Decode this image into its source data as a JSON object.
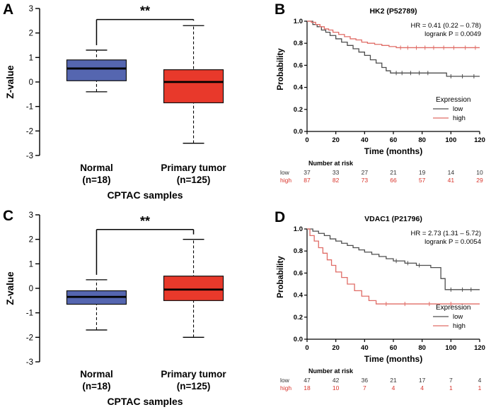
{
  "panel_labels": {
    "a": "A",
    "b": "B",
    "c": "C",
    "d": "D"
  },
  "colors": {
    "normal_box": "#5566B0",
    "tumor_box": "#E8392B",
    "km_low": "#4D4D4D",
    "km_high": "#E06C66",
    "risk_low_label": "#333333",
    "risk_high_label": "#D9342B"
  },
  "chart_data": [
    {
      "id": "A",
      "type": "box",
      "ylabel": "Z-value",
      "xlabel": "CPTAC samples",
      "ylim": [
        -3,
        3
      ],
      "yticks": [
        -3,
        -2,
        -1,
        0,
        1,
        2,
        3
      ],
      "significance": "**",
      "sig_level": 2.55,
      "groups": [
        {
          "label": "Normal",
          "sublabel": "(n=18)",
          "color": "#5566B0",
          "median": 0.55,
          "q1": 0.05,
          "q3": 0.9,
          "lo": -0.4,
          "hi": 1.3
        },
        {
          "label": "Primary tumor",
          "sublabel": "(n=125)",
          "color": "#E8392B",
          "median": 0.0,
          "q1": -0.85,
          "q3": 0.5,
          "lo": -2.5,
          "hi": 2.3
        }
      ]
    },
    {
      "id": "B",
      "type": "km",
      "title": "HK2 (P52789)",
      "annotation": [
        "HR = 0.41 (0.22 – 0.78)",
        "logrank P = 0.0049"
      ],
      "xlabel": "Time (months)",
      "ylabel": "Probability",
      "xlim": [
        0,
        120
      ],
      "xticks": [
        0,
        20,
        40,
        60,
        80,
        100,
        120
      ],
      "ylim": [
        0,
        1
      ],
      "yticks": [
        "0.0",
        "0.2",
        "0.4",
        "0.6",
        "0.8",
        "1.0"
      ],
      "legend_title": "Expression",
      "series": [
        {
          "name": "low",
          "color": "#4D4D4D",
          "steps": [
            [
              0,
              1.0
            ],
            [
              4,
              0.97
            ],
            [
              7,
              0.95
            ],
            [
              10,
              0.92
            ],
            [
              13,
              0.9
            ],
            [
              16,
              0.87
            ],
            [
              20,
              0.84
            ],
            [
              24,
              0.81
            ],
            [
              28,
              0.78
            ],
            [
              32,
              0.75
            ],
            [
              36,
              0.72
            ],
            [
              40,
              0.69
            ],
            [
              44,
              0.65
            ],
            [
              48,
              0.62
            ],
            [
              52,
              0.58
            ],
            [
              55,
              0.55
            ],
            [
              58,
              0.53
            ],
            [
              95,
              0.53
            ],
            [
              97,
              0.5
            ],
            [
              120,
              0.5
            ]
          ],
          "censor": [
            [
              62,
              0.53
            ],
            [
              66,
              0.53
            ],
            [
              72,
              0.53
            ],
            [
              78,
              0.53
            ],
            [
              84,
              0.53
            ],
            [
              100,
              0.5
            ],
            [
              108,
              0.5
            ],
            [
              116,
              0.5
            ]
          ]
        },
        {
          "name": "high",
          "color": "#E06C66",
          "steps": [
            [
              0,
              1.0
            ],
            [
              3,
              0.99
            ],
            [
              6,
              0.97
            ],
            [
              9,
              0.95
            ],
            [
              12,
              0.93
            ],
            [
              15,
              0.92
            ],
            [
              18,
              0.9
            ],
            [
              22,
              0.88
            ],
            [
              26,
              0.86
            ],
            [
              30,
              0.84
            ],
            [
              34,
              0.83
            ],
            [
              38,
              0.81
            ],
            [
              42,
              0.8
            ],
            [
              47,
              0.79
            ],
            [
              52,
              0.78
            ],
            [
              57,
              0.77
            ],
            [
              62,
              0.76
            ],
            [
              120,
              0.76
            ]
          ],
          "censor": [
            [
              65,
              0.76
            ],
            [
              70,
              0.76
            ],
            [
              76,
              0.76
            ],
            [
              82,
              0.76
            ],
            [
              88,
              0.76
            ],
            [
              95,
              0.76
            ],
            [
              102,
              0.76
            ],
            [
              110,
              0.76
            ],
            [
              117,
              0.76
            ]
          ]
        }
      ],
      "risk_table": {
        "title": "Number at risk",
        "times": [
          0,
          20,
          40,
          60,
          80,
          100,
          120
        ],
        "rows": [
          {
            "name": "low",
            "color": "#333333",
            "counts": [
              37,
              33,
              27,
              21,
              19,
              14,
              10
            ]
          },
          {
            "name": "high",
            "color": "#D9342B",
            "counts": [
              87,
              82,
              73,
              66,
              57,
              41,
              29
            ]
          }
        ]
      }
    },
    {
      "id": "C",
      "type": "box",
      "ylabel": "Z-value",
      "xlabel": "CPTAC samples",
      "ylim": [
        -3,
        3
      ],
      "yticks": [
        -3,
        -2,
        -1,
        0,
        1,
        2,
        3
      ],
      "significance": "**",
      "sig_level": 2.4,
      "groups": [
        {
          "label": "Normal",
          "sublabel": "(n=18)",
          "color": "#5566B0",
          "median": -0.35,
          "q1": -0.65,
          "q3": -0.1,
          "lo": -1.7,
          "hi": 0.35
        },
        {
          "label": "Primary tumor",
          "sublabel": "(n=125)",
          "color": "#E8392B",
          "median": -0.05,
          "q1": -0.5,
          "q3": 0.5,
          "lo": -2.0,
          "hi": 2.0
        }
      ]
    },
    {
      "id": "D",
      "type": "km",
      "title": "VDAC1 (P21796)",
      "annotation": [
        "HR = 2.73 (1.31 – 5.72)",
        "logrank P = 0.0054"
      ],
      "xlabel": "Time (months)",
      "ylabel": "Probability",
      "xlim": [
        0,
        120
      ],
      "xticks": [
        0,
        20,
        40,
        60,
        80,
        100,
        120
      ],
      "ylim": [
        0,
        1
      ],
      "yticks": [
        "0.0",
        "0.2",
        "0.4",
        "0.6",
        "0.8",
        "1.0"
      ],
      "legend_title": "Expression",
      "series": [
        {
          "name": "low",
          "color": "#4D4D4D",
          "steps": [
            [
              0,
              1.0
            ],
            [
              4,
              0.98
            ],
            [
              8,
              0.96
            ],
            [
              12,
              0.94
            ],
            [
              16,
              0.91
            ],
            [
              20,
              0.89
            ],
            [
              24,
              0.87
            ],
            [
              28,
              0.85
            ],
            [
              32,
              0.83
            ],
            [
              36,
              0.81
            ],
            [
              40,
              0.79
            ],
            [
              45,
              0.77
            ],
            [
              50,
              0.75
            ],
            [
              55,
              0.73
            ],
            [
              60,
              0.71
            ],
            [
              68,
              0.69
            ],
            [
              76,
              0.67
            ],
            [
              86,
              0.65
            ],
            [
              93,
              0.55
            ],
            [
              96,
              0.45
            ],
            [
              120,
              0.45
            ]
          ],
          "censor": [
            [
              62,
              0.71
            ],
            [
              70,
              0.69
            ],
            [
              78,
              0.67
            ],
            [
              100,
              0.45
            ],
            [
              108,
              0.45
            ],
            [
              114,
              0.45
            ]
          ]
        },
        {
          "name": "high",
          "color": "#E06C66",
          "steps": [
            [
              0,
              1.0
            ],
            [
              2,
              0.94
            ],
            [
              5,
              0.89
            ],
            [
              8,
              0.83
            ],
            [
              11,
              0.78
            ],
            [
              14,
              0.72
            ],
            [
              17,
              0.67
            ],
            [
              20,
              0.61
            ],
            [
              24,
              0.56
            ],
            [
              28,
              0.5
            ],
            [
              33,
              0.44
            ],
            [
              38,
              0.39
            ],
            [
              43,
              0.35
            ],
            [
              48,
              0.32
            ],
            [
              120,
              0.32
            ]
          ],
          "censor": [
            [
              55,
              0.32
            ],
            [
              68,
              0.32
            ],
            [
              85,
              0.32
            ],
            [
              100,
              0.32
            ]
          ]
        }
      ],
      "risk_table": {
        "title": "Number at risk",
        "times": [
          0,
          20,
          40,
          60,
          80,
          100,
          120
        ],
        "rows": [
          {
            "name": "low",
            "color": "#333333",
            "counts": [
              47,
              42,
              36,
              21,
              17,
              7,
              4
            ]
          },
          {
            "name": "high",
            "color": "#D9342B",
            "counts": [
              18,
              10,
              7,
              4,
              4,
              1,
              1
            ]
          }
        ]
      }
    }
  ]
}
